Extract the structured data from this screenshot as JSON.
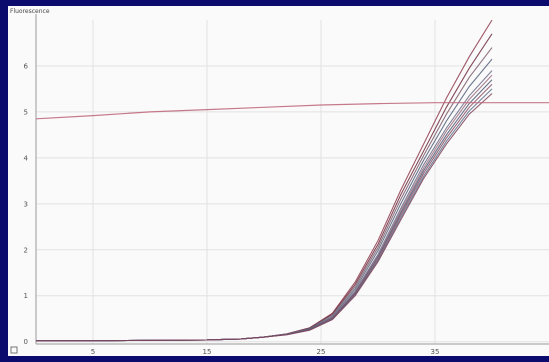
{
  "colors": {
    "frame": "#0b0b6e",
    "plot_background": "#fafafa",
    "grid": "#e2e2e2",
    "amplification_curves": [
      "#8e3b4e",
      "#6f2c3e",
      "#7a5a6a",
      "#55607a",
      "#6b6b86",
      "#9a6d80",
      "#4f5874",
      "#8a4c62",
      "#5c6e8a",
      "#7c3f57"
    ],
    "threshold_line": "#c06a7e"
  },
  "chart_data": {
    "type": "line",
    "ylabel": "Fluorescence",
    "xlabel": "",
    "xlim": [
      0,
      45
    ],
    "ylim": [
      -0.05,
      7.0
    ],
    "x_tick_values": [
      5,
      15,
      25,
      35
    ],
    "x_tick_labels": [
      "5",
      "15",
      "25",
      "35"
    ],
    "y_tick_values": [
      0,
      1,
      2,
      3,
      4,
      5,
      6
    ],
    "y_tick_labels": [
      "0",
      "1",
      "2",
      "3",
      "4",
      "5",
      "6"
    ],
    "grid": true,
    "legend": "none",
    "series": [
      {
        "points": [
          [
            0,
            0.02
          ],
          [
            5,
            0.02
          ],
          [
            10,
            0.03
          ],
          [
            15,
            0.04
          ],
          [
            18,
            0.06
          ],
          [
            20,
            0.1
          ],
          [
            22,
            0.17
          ],
          [
            24,
            0.3
          ],
          [
            26,
            0.62
          ],
          [
            28,
            1.3
          ],
          [
            30,
            2.2
          ],
          [
            32,
            3.3
          ],
          [
            34,
            4.3
          ],
          [
            36,
            5.3
          ],
          [
            38,
            6.2
          ],
          [
            40,
            7.0
          ]
        ]
      },
      {
        "points": [
          [
            0,
            0.02
          ],
          [
            5,
            0.02
          ],
          [
            10,
            0.03
          ],
          [
            15,
            0.04
          ],
          [
            18,
            0.06
          ],
          [
            20,
            0.1
          ],
          [
            22,
            0.17
          ],
          [
            24,
            0.3
          ],
          [
            26,
            0.6
          ],
          [
            28,
            1.25
          ],
          [
            30,
            2.12
          ],
          [
            32,
            3.2
          ],
          [
            34,
            4.15
          ],
          [
            36,
            5.1
          ],
          [
            38,
            5.95
          ],
          [
            40,
            6.7
          ]
        ]
      },
      {
        "points": [
          [
            0,
            0.02
          ],
          [
            5,
            0.02
          ],
          [
            10,
            0.03
          ],
          [
            15,
            0.04
          ],
          [
            18,
            0.06
          ],
          [
            20,
            0.1
          ],
          [
            22,
            0.17
          ],
          [
            24,
            0.29
          ],
          [
            26,
            0.58
          ],
          [
            28,
            1.2
          ],
          [
            30,
            2.05
          ],
          [
            32,
            3.1
          ],
          [
            34,
            4.05
          ],
          [
            36,
            4.95
          ],
          [
            38,
            5.75
          ],
          [
            40,
            6.4
          ]
        ]
      },
      {
        "points": [
          [
            0,
            0.02
          ],
          [
            5,
            0.02
          ],
          [
            10,
            0.03
          ],
          [
            15,
            0.04
          ],
          [
            18,
            0.06
          ],
          [
            20,
            0.1
          ],
          [
            22,
            0.16
          ],
          [
            24,
            0.28
          ],
          [
            26,
            0.55
          ],
          [
            28,
            1.15
          ],
          [
            30,
            1.98
          ],
          [
            32,
            3.0
          ],
          [
            34,
            3.95
          ],
          [
            36,
            4.8
          ],
          [
            38,
            5.55
          ],
          [
            40,
            6.15
          ]
        ]
      },
      {
        "points": [
          [
            0,
            0.02
          ],
          [
            5,
            0.02
          ],
          [
            10,
            0.03
          ],
          [
            15,
            0.04
          ],
          [
            18,
            0.06
          ],
          [
            20,
            0.1
          ],
          [
            22,
            0.16
          ],
          [
            24,
            0.27
          ],
          [
            26,
            0.53
          ],
          [
            28,
            1.1
          ],
          [
            30,
            1.9
          ],
          [
            32,
            2.9
          ],
          [
            34,
            3.85
          ],
          [
            36,
            4.65
          ],
          [
            38,
            5.35
          ],
          [
            40,
            5.9
          ]
        ]
      },
      {
        "points": [
          [
            0,
            0.02
          ],
          [
            5,
            0.02
          ],
          [
            10,
            0.03
          ],
          [
            15,
            0.04
          ],
          [
            18,
            0.06
          ],
          [
            20,
            0.1
          ],
          [
            22,
            0.16
          ],
          [
            24,
            0.27
          ],
          [
            26,
            0.52
          ],
          [
            28,
            1.08
          ],
          [
            30,
            1.87
          ],
          [
            32,
            2.85
          ],
          [
            34,
            3.78
          ],
          [
            36,
            4.58
          ],
          [
            38,
            5.27
          ],
          [
            40,
            5.8
          ]
        ]
      },
      {
        "points": [
          [
            0,
            0.02
          ],
          [
            5,
            0.02
          ],
          [
            10,
            0.03
          ],
          [
            15,
            0.04
          ],
          [
            18,
            0.06
          ],
          [
            20,
            0.1
          ],
          [
            22,
            0.16
          ],
          [
            24,
            0.27
          ],
          [
            26,
            0.51
          ],
          [
            28,
            1.06
          ],
          [
            30,
            1.84
          ],
          [
            32,
            2.8
          ],
          [
            34,
            3.72
          ],
          [
            36,
            4.5
          ],
          [
            38,
            5.18
          ],
          [
            40,
            5.7
          ]
        ]
      },
      {
        "points": [
          [
            0,
            0.02
          ],
          [
            5,
            0.02
          ],
          [
            10,
            0.03
          ],
          [
            15,
            0.04
          ],
          [
            18,
            0.06
          ],
          [
            20,
            0.1
          ],
          [
            22,
            0.16
          ],
          [
            24,
            0.26
          ],
          [
            26,
            0.5
          ],
          [
            28,
            1.04
          ],
          [
            30,
            1.8
          ],
          [
            32,
            2.75
          ],
          [
            34,
            3.66
          ],
          [
            36,
            4.43
          ],
          [
            38,
            5.1
          ],
          [
            40,
            5.6
          ]
        ]
      },
      {
        "points": [
          [
            0,
            0.02
          ],
          [
            5,
            0.02
          ],
          [
            10,
            0.03
          ],
          [
            15,
            0.04
          ],
          [
            18,
            0.06
          ],
          [
            20,
            0.1
          ],
          [
            22,
            0.16
          ],
          [
            24,
            0.26
          ],
          [
            26,
            0.49
          ],
          [
            28,
            1.02
          ],
          [
            30,
            1.77
          ],
          [
            32,
            2.7
          ],
          [
            34,
            3.6
          ],
          [
            36,
            4.36
          ],
          [
            38,
            5.02
          ],
          [
            40,
            5.5
          ]
        ]
      },
      {
        "points": [
          [
            0,
            0.02
          ],
          [
            5,
            0.02
          ],
          [
            10,
            0.03
          ],
          [
            15,
            0.04
          ],
          [
            18,
            0.06
          ],
          [
            20,
            0.1
          ],
          [
            22,
            0.15
          ],
          [
            24,
            0.25
          ],
          [
            26,
            0.48
          ],
          [
            28,
            1.0
          ],
          [
            30,
            1.74
          ],
          [
            32,
            2.65
          ],
          [
            34,
            3.55
          ],
          [
            36,
            4.3
          ],
          [
            38,
            4.95
          ],
          [
            40,
            5.4
          ]
        ]
      },
      {
        "points": [
          [
            0,
            4.85
          ],
          [
            5,
            4.92
          ],
          [
            10,
            5.0
          ],
          [
            15,
            5.05
          ],
          [
            20,
            5.1
          ],
          [
            25,
            5.15
          ],
          [
            30,
            5.18
          ],
          [
            35,
            5.2
          ],
          [
            40,
            5.2
          ],
          [
            45,
            5.2
          ]
        ]
      }
    ]
  }
}
